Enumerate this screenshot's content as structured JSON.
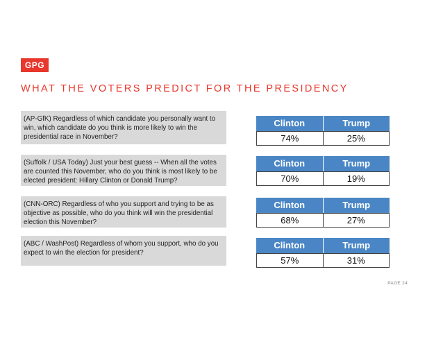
{
  "logo": "GPG",
  "title": "WHAT THE VOTERS PREDICT FOR THE PRESIDENCY",
  "polls": [
    {
      "question": "(AP-GfK) Regardless of which candidate you personally want to win, which candidate do you think is  more likely to win the presidential race in November?",
      "headers": [
        "Clinton",
        "Trump"
      ],
      "values": [
        "74%",
        "25%"
      ]
    },
    {
      "question": "(Suffolk / USA Today) Just your best guess -- When all the votes are counted this November, who do you think is most likely to be elected president:  Hillary Clinton or Donald Trump?",
      "headers": [
        "Clinton",
        "Trump"
      ],
      "values": [
        "70%",
        "19%"
      ]
    },
    {
      "question": "(CNN-ORC)  Regardless of who you support and trying to be as objective as possible, who do you think will win the presidential election this November?",
      "headers": [
        "Clinton",
        "Trump"
      ],
      "values": [
        "68%",
        "27%"
      ]
    },
    {
      "question": "(ABC / WashPost) Regardless of whom you support, who do you expect to win the election for president?",
      "headers": [
        "Clinton",
        "Trump"
      ],
      "values": [
        "57%",
        "31%"
      ]
    }
  ],
  "page_number": "PAGE 24",
  "colors": {
    "accent": "#e8372c",
    "header_blue": "#4a86c5",
    "question_bg": "#d9d9d9"
  }
}
